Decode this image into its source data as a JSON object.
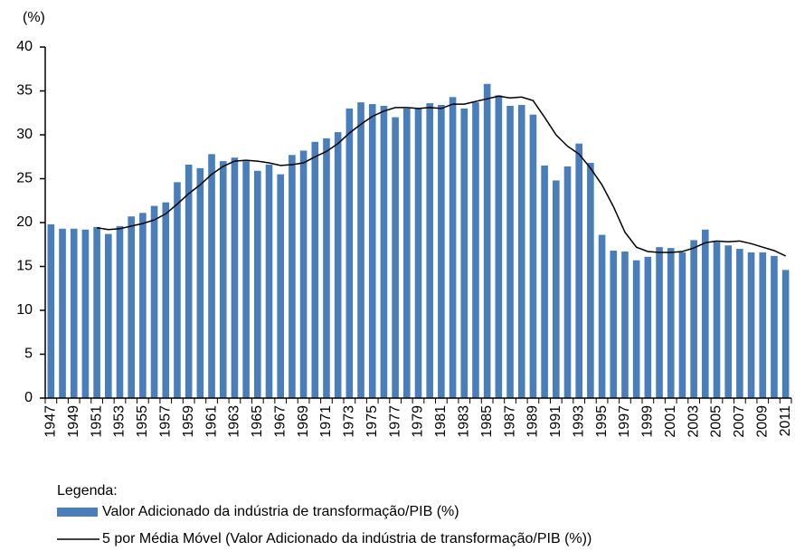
{
  "chart_data": {
    "type": "bar",
    "y_unit": "(%)",
    "categories": [
      "1947",
      null,
      "1949",
      null,
      "1951",
      null,
      "1953",
      null,
      "1955",
      null,
      "1957",
      null,
      "1959",
      null,
      "1961",
      null,
      "1963",
      null,
      "1965",
      null,
      "1967",
      null,
      "1969",
      null,
      "1971",
      null,
      "1973",
      null,
      "1975",
      null,
      "1977",
      null,
      "1979",
      null,
      "1981",
      null,
      "1983",
      null,
      "1985",
      null,
      "1987",
      null,
      "1989",
      null,
      "1991",
      null,
      "1993",
      null,
      "1995",
      null,
      "1997",
      null,
      "1999",
      null,
      "2001",
      null,
      "2003",
      null,
      "2005",
      null,
      "2007",
      null,
      "2009",
      null,
      "2011"
    ],
    "series": [
      {
        "name": "Valor Adicionado da indústria de transformação/PIB (%)",
        "type": "bar",
        "color": "#4a7ebb",
        "values": [
          19.8,
          19.3,
          19.3,
          19.2,
          19.5,
          18.7,
          19.6,
          20.7,
          21.1,
          21.9,
          22.3,
          24.6,
          26.6,
          26.2,
          27.8,
          27.0,
          27.4,
          27.0,
          25.9,
          26.6,
          25.5,
          27.7,
          28.2,
          29.2,
          29.6,
          30.3,
          33.0,
          33.7,
          33.5,
          33.3,
          32.0,
          33.0,
          33.0,
          33.6,
          33.4,
          34.3,
          33.0,
          33.7,
          35.8,
          34.5,
          33.3,
          33.4,
          32.3,
          26.5,
          24.8,
          26.4,
          29.0,
          26.8,
          18.6,
          16.8,
          16.7,
          15.7,
          16.1,
          17.2,
          17.1,
          16.6,
          18.0,
          19.2,
          17.8,
          17.4,
          17.0,
          16.6,
          16.6,
          16.2,
          14.6
        ]
      },
      {
        "name": "5 por Média Móvel (Valor Adicionado da indústria de transformação/PIB (%))",
        "type": "line",
        "color": "#000000",
        "values": [
          null,
          null,
          null,
          null,
          19.4,
          19.2,
          19.3,
          19.6,
          19.9,
          20.3,
          21.0,
          22.1,
          23.3,
          24.3,
          25.5,
          26.4,
          27.0,
          27.1,
          27.0,
          26.8,
          26.5,
          26.6,
          26.8,
          27.5,
          28.1,
          29.0,
          30.2,
          31.2,
          32.1,
          32.7,
          33.1,
          33.1,
          33.0,
          33.1,
          33.0,
          33.5,
          33.5,
          33.8,
          34.1,
          34.4,
          34.2,
          34.3,
          33.9,
          32.0,
          30.0,
          28.7,
          27.8,
          26.2,
          24.3,
          21.8,
          18.9,
          17.2,
          16.7,
          16.6,
          16.6,
          16.7,
          17.1,
          17.7,
          17.9,
          17.8,
          17.9,
          17.6,
          17.2,
          16.8,
          16.2
        ]
      }
    ],
    "ylim": [
      0,
      40
    ],
    "yticks": [
      0,
      5,
      10,
      15,
      20,
      25,
      30,
      35,
      40
    ],
    "grid": false,
    "legend_title": "Legenda:"
  }
}
